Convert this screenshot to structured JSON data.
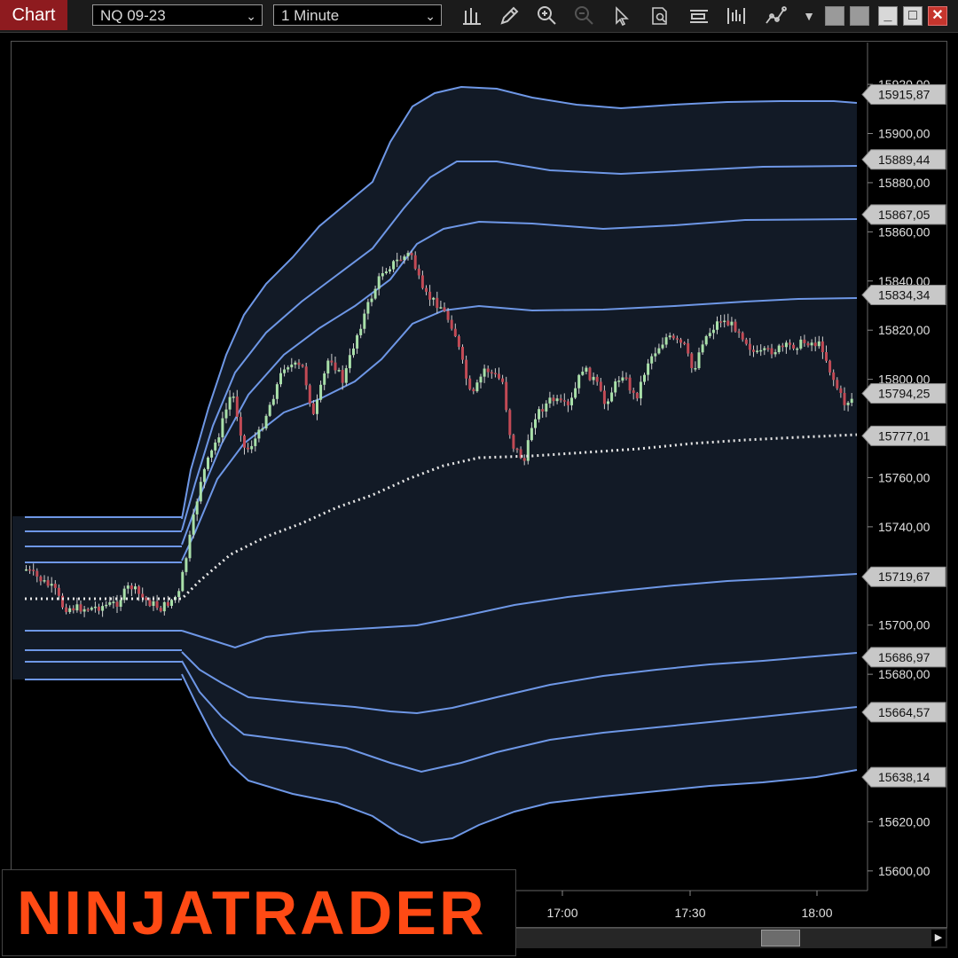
{
  "toolbar": {
    "tab_label": "Chart",
    "instrument": "NQ 09-23",
    "interval": "1 Minute",
    "icons": [
      "bar-type-icon",
      "pencil-icon",
      "zoom-in-icon",
      "zoom-out-icon",
      "pointer-icon",
      "data-box-icon",
      "properties-icon",
      "strategy-icon",
      "indicator-icon",
      "more-icon"
    ]
  },
  "window_controls": {
    "minimize": "_",
    "maximize": "□",
    "close": "✕"
  },
  "colors": {
    "background": "#000000",
    "band_fill": "#121a26",
    "band_line": "#6e97e6",
    "vwap_line": "#e6e6e6",
    "candle_up": "#a9e0a9",
    "candle_down": "#c24a55",
    "tag_bg": "#c8c8c8",
    "logo": "#ff4a14"
  },
  "chart_data": {
    "type": "candlestick",
    "instrument": "NQ 09-23",
    "interval": "1 Minute",
    "y_ticks": [
      "15600,00",
      "15620,00",
      "15680,00",
      "15700,00",
      "15740,00",
      "15760,00",
      "15800,00",
      "15820,00",
      "15840,00",
      "15860,00",
      "15880,00",
      "15900,00",
      "15920,00"
    ],
    "y_ticks_numeric": [
      15600,
      15620,
      15680,
      15700,
      15740,
      15760,
      15800,
      15820,
      15840,
      15860,
      15880,
      15900,
      15920
    ],
    "x_ticks": [
      "17:00",
      "17:30",
      "18:00"
    ],
    "price_tags": [
      {
        "label": "15915,87",
        "value": 15915.87,
        "kind": "band"
      },
      {
        "label": "15889,44",
        "value": 15889.44,
        "kind": "band"
      },
      {
        "label": "15867,05",
        "value": 15867.05,
        "kind": "band"
      },
      {
        "label": "15834,34",
        "value": 15834.34,
        "kind": "band"
      },
      {
        "label": "15794,25",
        "value": 15794.25,
        "kind": "last"
      },
      {
        "label": "15777,01",
        "value": 15777.01,
        "kind": "vwap"
      },
      {
        "label": "15719,67",
        "value": 15719.67,
        "kind": "band"
      },
      {
        "label": "15686,97",
        "value": 15686.97,
        "kind": "band"
      },
      {
        "label": "15664,57",
        "value": 15664.57,
        "kind": "band"
      },
      {
        "label": "15638,14",
        "value": 15638.14,
        "kind": "band"
      }
    ],
    "ylim": [
      15592,
      15937
    ],
    "grid": false
  },
  "logo": {
    "text": "NINJATRADER"
  }
}
